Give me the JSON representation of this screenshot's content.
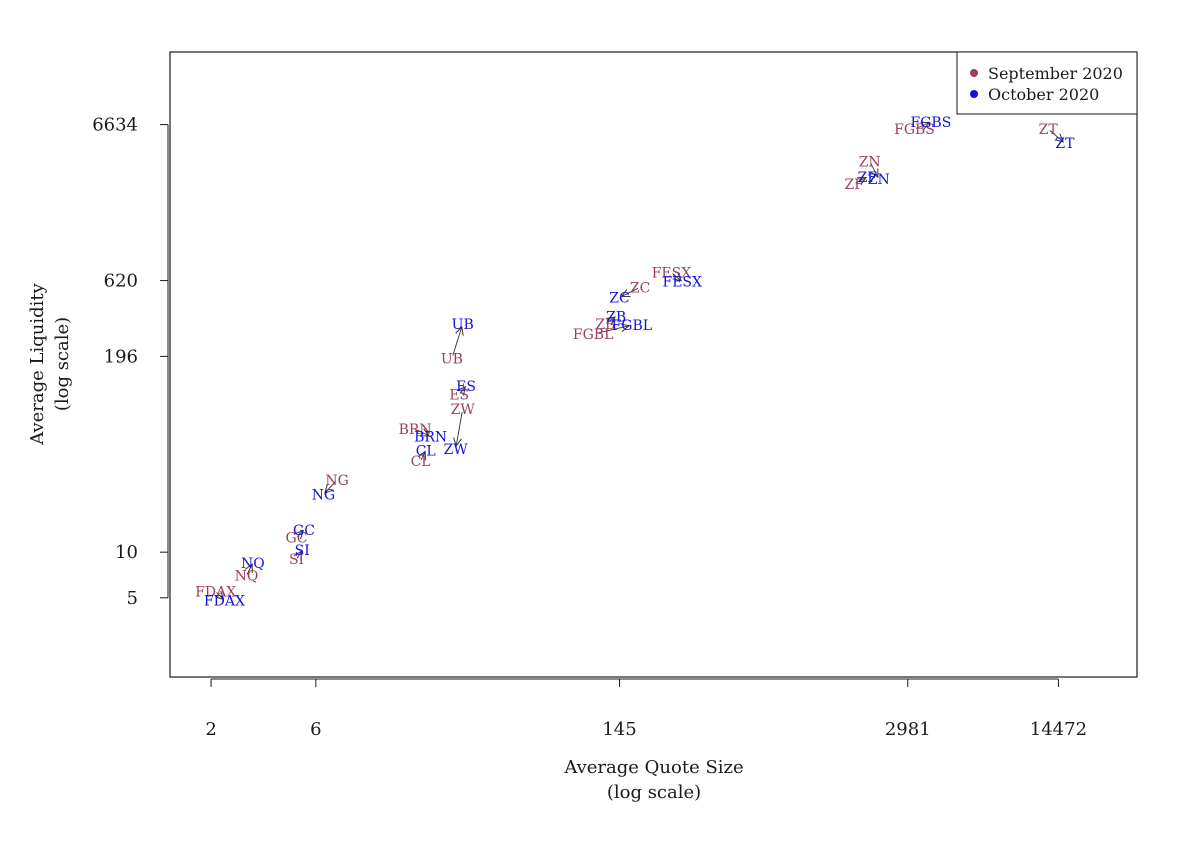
{
  "chart_data": {
    "type": "scatter",
    "xscale": "log",
    "yscale": "log",
    "xlabel": "Average Quote Size",
    "xlabel_sub": "(log scale)",
    "ylabel": "Average Liquidity",
    "ylabel_sub": "(log scale)",
    "xlim": [
      1.3,
      33000
    ],
    "ylim": [
      1.5,
      20000
    ],
    "x_ticks": [
      2,
      6,
      145,
      2981,
      14472
    ],
    "y_ticks": [
      5,
      10,
      196,
      620,
      6634
    ],
    "grid": false,
    "legend_position": "top-right",
    "series": [
      {
        "name": "September 2020",
        "color": "#9e3d5e",
        "points": [
          {
            "label": "FDAX",
            "x": 2.1,
            "y": 5.5
          },
          {
            "label": "NQ",
            "x": 2.9,
            "y": 7.0
          },
          {
            "label": "SI",
            "x": 4.9,
            "y": 9.0
          },
          {
            "label": "GC",
            "x": 4.9,
            "y": 12.5
          },
          {
            "label": "NG",
            "x": 7.5,
            "y": 30.0
          },
          {
            "label": "CL",
            "x": 18.0,
            "y": 40.0
          },
          {
            "label": "BRN",
            "x": 17.0,
            "y": 65.0
          },
          {
            "label": "ZW",
            "x": 28.0,
            "y": 88.0
          },
          {
            "label": "ES",
            "x": 27.0,
            "y": 110.0
          },
          {
            "label": "UB",
            "x": 25.0,
            "y": 190.0
          },
          {
            "label": "FGBL",
            "x": 110.0,
            "y": 275.0
          },
          {
            "label": "ZB",
            "x": 125.0,
            "y": 320.0
          },
          {
            "label": "ZC",
            "x": 180.0,
            "y": 560.0
          },
          {
            "label": "FESX",
            "x": 250.0,
            "y": 700.0
          },
          {
            "label": "ZF",
            "x": 1700.0,
            "y": 2700.0
          },
          {
            "label": "ZN",
            "x": 2000.0,
            "y": 3800.0
          },
          {
            "label": "FGBS",
            "x": 3200.0,
            "y": 6200.0
          },
          {
            "label": "ZT",
            "x": 13000.0,
            "y": 6200.0
          }
        ]
      },
      {
        "name": "October 2020",
        "color": "#1111dd",
        "points": [
          {
            "label": "FDAX",
            "x": 2.3,
            "y": 4.8
          },
          {
            "label": "NQ",
            "x": 3.1,
            "y": 8.5
          },
          {
            "label": "SI",
            "x": 5.2,
            "y": 10.3
          },
          {
            "label": "GC",
            "x": 5.3,
            "y": 14.0
          },
          {
            "label": "NG",
            "x": 6.5,
            "y": 24.0
          },
          {
            "label": "CL",
            "x": 19.0,
            "y": 47.0
          },
          {
            "label": "BRN",
            "x": 20.0,
            "y": 58.0
          },
          {
            "label": "ZW",
            "x": 26.0,
            "y": 48.0
          },
          {
            "label": "ES",
            "x": 29.0,
            "y": 125.0
          },
          {
            "label": "UB",
            "x": 28.0,
            "y": 320.0
          },
          {
            "label": "FGBL",
            "x": 165.0,
            "y": 315.0
          },
          {
            "label": "ZB",
            "x": 140.0,
            "y": 360.0
          },
          {
            "label": "ZC",
            "x": 145.0,
            "y": 480.0
          },
          {
            "label": "FESX",
            "x": 280.0,
            "y": 610.0
          },
          {
            "label": "ZF",
            "x": 1950.0,
            "y": 3000.0
          },
          {
            "label": "ZN",
            "x": 2200.0,
            "y": 2900.0
          },
          {
            "label": "FGBS",
            "x": 3800.0,
            "y": 6900.0
          },
          {
            "label": "ZT",
            "x": 15500.0,
            "y": 5000.0
          }
        ]
      }
    ]
  }
}
